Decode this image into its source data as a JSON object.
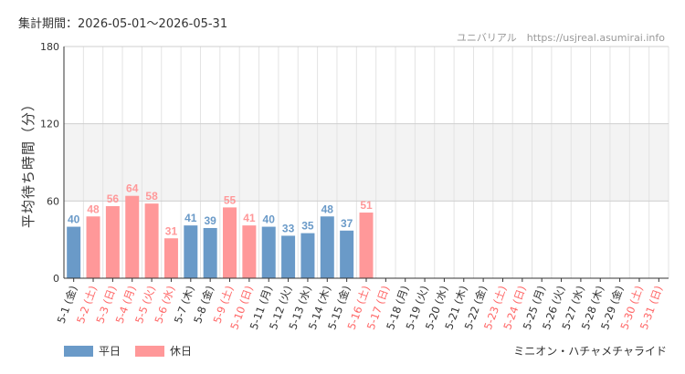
{
  "header": {
    "period": "集計期間：2026-05-01～2026-05-31",
    "site": "ユニバリアル　https://usjreal.asumirai.info"
  },
  "footer": {
    "attraction": "ミニオン・ハチャメチャライド"
  },
  "legend": {
    "weekday_label": "平日",
    "holiday_label": "休日"
  },
  "colors": {
    "weekday": "#6a9ac8",
    "holiday": "#ff9899",
    "band": "#f3f3f3",
    "grid": "#e3e3e3"
  },
  "chart_data": {
    "type": "bar",
    "ylabel": "平均待ち時間（分）",
    "ylim": [
      0,
      180
    ],
    "yticks": [
      0,
      60,
      120,
      180
    ],
    "categories": [
      "5-1 (金)",
      "5-2 (土)",
      "5-3 (日)",
      "5-4 (月)",
      "5-5 (火)",
      "5-6 (水)",
      "5-7 (木)",
      "5-8 (金)",
      "5-9 (土)",
      "5-10 (日)",
      "5-11 (月)",
      "5-12 (火)",
      "5-13 (水)",
      "5-14 (木)",
      "5-15 (金)",
      "5-16 (土)",
      "5-17 (日)",
      "5-18 (月)",
      "5-19 (火)",
      "5-20 (水)",
      "5-21 (木)",
      "5-22 (金)",
      "5-23 (土)",
      "5-24 (日)",
      "5-25 (月)",
      "5-26 (火)",
      "5-27 (水)",
      "5-28 (木)",
      "5-29 (金)",
      "5-30 (土)",
      "5-31 (日)"
    ],
    "day_type": [
      "weekday",
      "holiday",
      "holiday",
      "holiday",
      "holiday",
      "holiday",
      "weekday",
      "weekday",
      "holiday",
      "holiday",
      "weekday",
      "weekday",
      "weekday",
      "weekday",
      "weekday",
      "holiday",
      "holiday",
      "weekday",
      "weekday",
      "weekday",
      "weekday",
      "weekday",
      "holiday",
      "holiday",
      "weekday",
      "weekday",
      "weekday",
      "weekday",
      "weekday",
      "holiday",
      "holiday"
    ],
    "values": [
      40,
      48,
      56,
      64,
      58,
      31,
      41,
      39,
      55,
      41,
      40,
      33,
      35,
      48,
      37,
      51,
      null,
      null,
      null,
      null,
      null,
      null,
      null,
      null,
      null,
      null,
      null,
      null,
      null,
      null,
      null
    ],
    "grid": true,
    "legend_position": "bottom-left"
  }
}
